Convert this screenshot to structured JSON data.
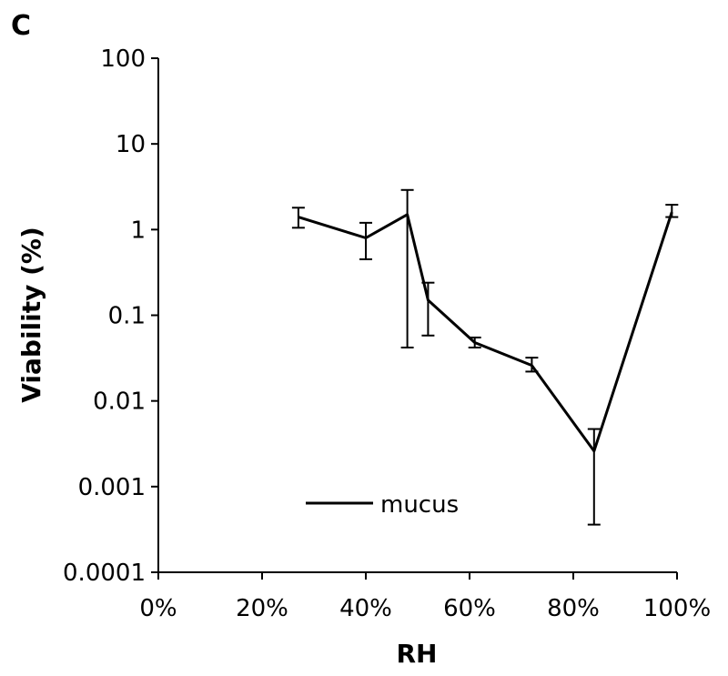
{
  "panel_label": "C",
  "chart_data": {
    "type": "line",
    "xlabel": "RH",
    "ylabel": "Viability (%)",
    "xscale": "linear",
    "yscale": "log",
    "xlim": [
      0,
      100
    ],
    "ylim": [
      0.0001,
      100
    ],
    "x_ticks": [
      0,
      20,
      40,
      60,
      80,
      100
    ],
    "x_tick_labels": [
      "0%",
      "20%",
      "40%",
      "60%",
      "80%",
      "100%"
    ],
    "y_ticks": [
      0.0001,
      0.001,
      0.01,
      0.1,
      1,
      10,
      100
    ],
    "y_tick_labels": [
      "0.0001",
      "0.001",
      "0.01",
      "0.1",
      "1",
      "10",
      "100"
    ],
    "grid": false,
    "legend": {
      "position": "bottom-center-left",
      "entries": [
        "mucus"
      ]
    },
    "series": [
      {
        "name": "mucus",
        "color": "#000000",
        "points": [
          {
            "x": 27,
            "y": 1.4,
            "err_low": 1.05,
            "err_high": 1.8
          },
          {
            "x": 40,
            "y": 0.8,
            "err_low": 0.45,
            "err_high": 1.2
          },
          {
            "x": 48,
            "y": 1.5,
            "err_low": 0.042,
            "err_high": 2.9
          },
          {
            "x": 52,
            "y": 0.15,
            "err_low": 0.058,
            "err_high": 0.24
          },
          {
            "x": 61,
            "y": 0.048,
            "err_low": 0.042,
            "err_high": 0.055
          },
          {
            "x": 72,
            "y": 0.026,
            "err_low": 0.022,
            "err_high": 0.032
          },
          {
            "x": 84,
            "y": 0.0026,
            "err_low": 0.00036,
            "err_high": 0.0047
          },
          {
            "x": 99,
            "y": 1.6,
            "err_low": 1.4,
            "err_high": 1.95
          }
        ]
      }
    ]
  }
}
